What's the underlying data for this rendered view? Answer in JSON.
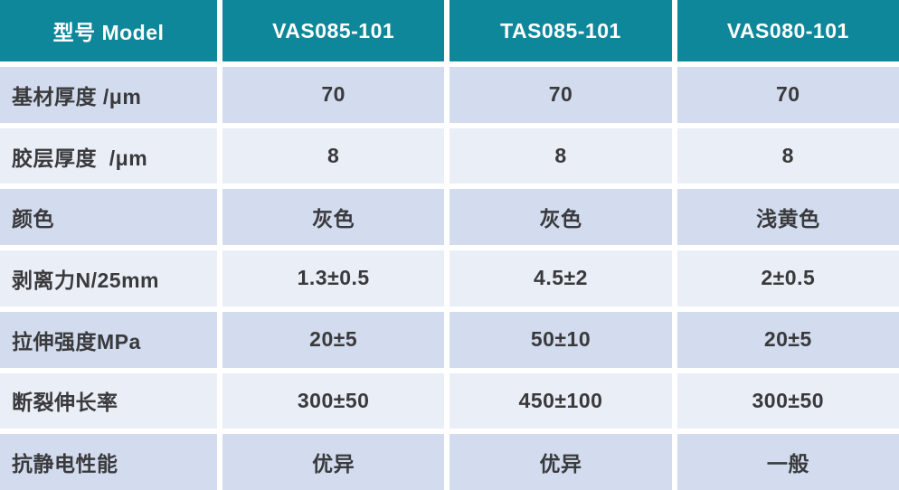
{
  "colors": {
    "header_background": "#0f879b",
    "header_text": "#ffffff",
    "row_dark": "#d2dcee",
    "row_light": "#eaeef6",
    "body_text": "#3a3a3d",
    "grid_gap": "#ffffff"
  },
  "table": {
    "header": {
      "model_label": "型号 Model",
      "columns": [
        "VAS085-101",
        "TAS085-101",
        "VAS080-101"
      ]
    },
    "rows": [
      {
        "label": "基材厚度 /μm",
        "values": [
          "70",
          "70",
          "70"
        ]
      },
      {
        "label": "胶层厚度  /μm",
        "values": [
          "8",
          "8",
          "8"
        ]
      },
      {
        "label": "颜色",
        "values": [
          "灰色",
          "灰色",
          "浅黄色"
        ]
      },
      {
        "label": "剥离力N/25mm",
        "values": [
          "1.3±0.5",
          "4.5±2",
          "2±0.5"
        ]
      },
      {
        "label": "拉伸强度MPa",
        "values": [
          "20±5",
          "50±10",
          "20±5"
        ]
      },
      {
        "label": "断裂伸长率",
        "values": [
          "300±50",
          "450±100",
          "300±50"
        ]
      },
      {
        "label": "抗静电性能",
        "values": [
          "优异",
          "优异",
          "一般"
        ]
      }
    ]
  }
}
